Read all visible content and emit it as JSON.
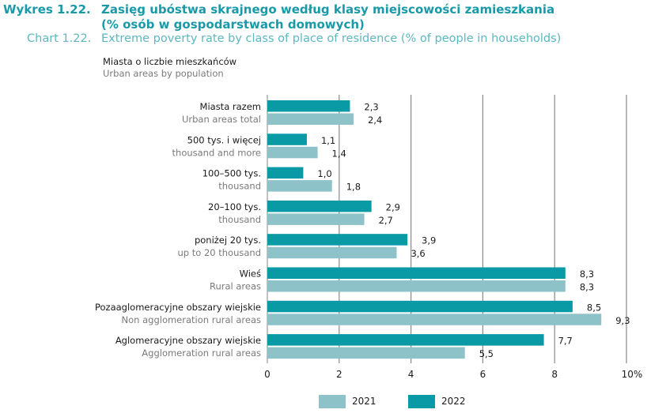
{
  "header": {
    "label_pl": "Wykres 1.22.",
    "title_pl_line1": "Zasięg ubóstwa skrajnego według klasy miejscowości zamieszkania",
    "title_pl_line2": "(% osób w gospodarstwach domowych)",
    "label_en": "Chart 1.22.",
    "title_en": "Extreme poverty rate by class of place of residence (% of people in households)"
  },
  "subheading": {
    "pl": "Miasta o liczbie mieszkańców",
    "en": "Urban areas by population"
  },
  "colors": {
    "series_2022": "#0a9aa5",
    "series_2021": "#8cc2c8",
    "title": "#1a9aa8",
    "title_en": "#5db7c0"
  },
  "chart_data": {
    "type": "bar",
    "orientation": "horizontal",
    "title": "Extreme poverty rate by class of place of residence (% of people in households)",
    "xlabel": "",
    "ylabel": "",
    "xlim": [
      0,
      10
    ],
    "x_ticks": [
      "0",
      "2",
      "4",
      "6",
      "8",
      "10%"
    ],
    "x_tick_values": [
      0,
      2,
      4,
      6,
      8,
      10
    ],
    "grid": true,
    "legend_position": "bottom",
    "categories": [
      {
        "pl": "Miasta razem",
        "en": "Urban areas total"
      },
      {
        "pl": "500 tys. i więcej",
        "en": "thousand and more"
      },
      {
        "pl": "100–500 tys.",
        "en": "thousand"
      },
      {
        "pl": "20–100 tys.",
        "en": "thousand"
      },
      {
        "pl": "poniżej 20 tys.",
        "en": "up to 20 thousand"
      },
      {
        "pl": "Wieś",
        "en": "Rural areas"
      },
      {
        "pl": "Pozaaglomeracyjne obszary wiejskie",
        "en": "Non agglomeration rural areas"
      },
      {
        "pl": "Aglomeracyjne obszary wiejskie",
        "en": "Agglomeration rural areas"
      }
    ],
    "series": [
      {
        "name": "2022",
        "values": [
          2.3,
          1.1,
          1.0,
          2.9,
          3.9,
          8.3,
          8.5,
          7.7
        ],
        "labels": [
          "2,3",
          "1,1",
          "1,0",
          "2,9",
          "3,9",
          "8,3",
          "8,5",
          "7,7"
        ]
      },
      {
        "name": "2021",
        "values": [
          2.4,
          1.4,
          1.8,
          2.7,
          3.6,
          8.3,
          9.3,
          5.5
        ],
        "labels": [
          "2,4",
          "1,4",
          "1,8",
          "2,7",
          "3,6",
          "8,3",
          "9,3",
          "5,5"
        ]
      }
    ]
  },
  "legend": [
    {
      "name": "2021"
    },
    {
      "name": "2022"
    }
  ]
}
